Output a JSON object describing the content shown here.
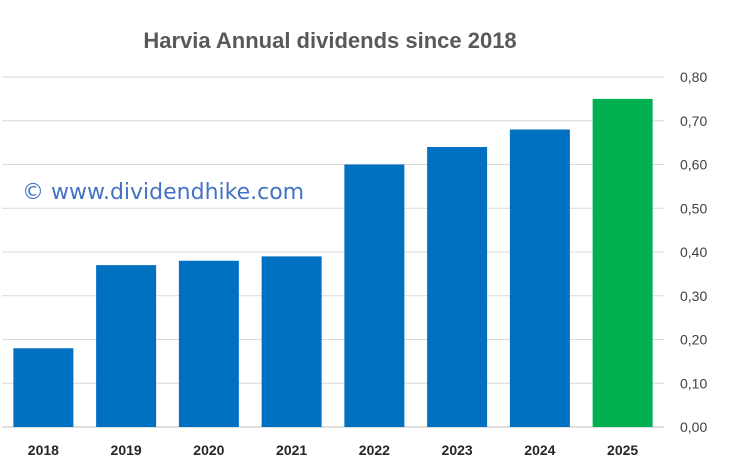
{
  "chart_data": {
    "type": "bar",
    "title": "Harvia Annual dividends since 2018",
    "categories": [
      "2018",
      "2019",
      "2020",
      "2021",
      "2022",
      "2023",
      "2024",
      "2025"
    ],
    "values": [
      0.18,
      0.37,
      0.38,
      0.39,
      0.6,
      0.64,
      0.68,
      0.75
    ],
    "bar_colors": [
      "#0070C0",
      "#0070C0",
      "#0070C0",
      "#0070C0",
      "#0070C0",
      "#0070C0",
      "#0070C0",
      "#00B050"
    ],
    "ylim": [
      0,
      0.8
    ],
    "yticks": [
      "0,00",
      "0,10",
      "0,20",
      "0,30",
      "0,40",
      "0,50",
      "0,60",
      "0,70",
      "0,80"
    ],
    "y_axis_side": "right",
    "grid": true,
    "xlabel": "",
    "ylabel": ""
  },
  "watermark": "© www.dividendhike.com"
}
